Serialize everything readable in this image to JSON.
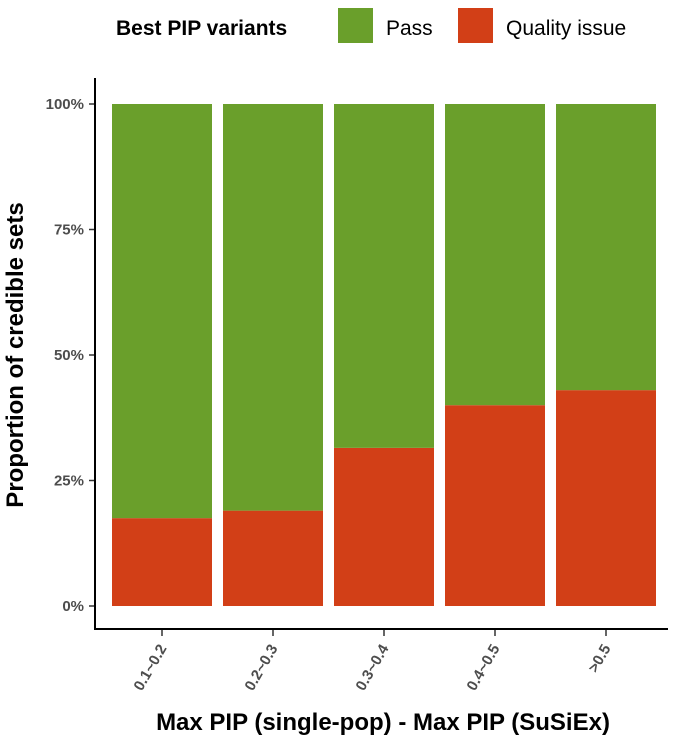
{
  "chart_data": {
    "type": "bar",
    "stacked": true,
    "categories": [
      "0.1~0.2",
      "0.2~0.3",
      "0.3~0.4",
      "0.4~0.5",
      ">0.5"
    ],
    "series": [
      {
        "name": "Quality issue",
        "color": "#D23F17",
        "values": [
          17.5,
          19.0,
          31.5,
          40.0,
          43.0
        ]
      },
      {
        "name": "Pass",
        "color": "#6A9F2B",
        "values": [
          82.5,
          81.0,
          68.5,
          60.0,
          57.0
        ]
      }
    ],
    "xlabel": "Max PIP (single-pop) - Max PIP (SuSiEx)",
    "ylabel": "Proportion of credible sets",
    "ylim": [
      0,
      100
    ],
    "yticks": [
      0,
      25,
      50,
      75,
      100
    ],
    "yticklabels": [
      "0%",
      "25%",
      "50%",
      "75%",
      "100%"
    ],
    "legend": {
      "title": "Best PIP variants",
      "position": "top",
      "entries": [
        "Pass",
        "Quality issue"
      ]
    },
    "grid": false
  }
}
